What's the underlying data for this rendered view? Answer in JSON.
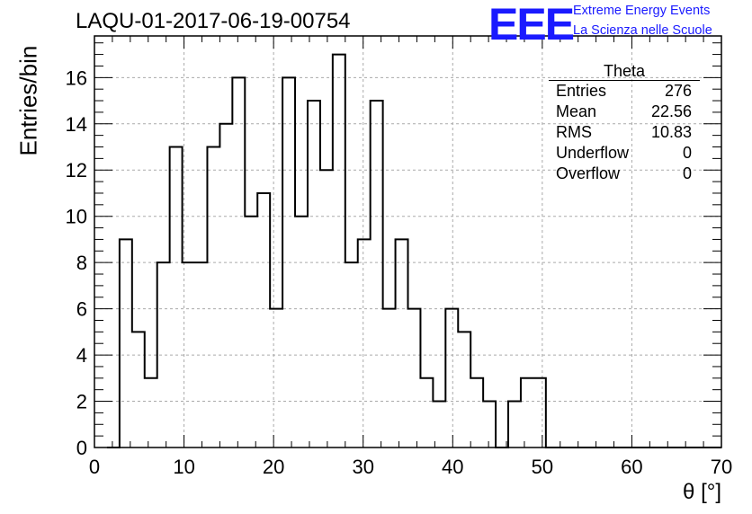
{
  "title": "LAQU-01-2017-06-19-00754",
  "logo": {
    "mark": "EEE",
    "line1": "Extreme Energy Events",
    "line2": "La Scienza nelle Scuole"
  },
  "stats": {
    "name": "Theta",
    "rows": [
      {
        "label": "Entries",
        "value": "276"
      },
      {
        "label": "Mean",
        "value": "22.56"
      },
      {
        "label": "RMS",
        "value": "10.83"
      },
      {
        "label": "Underflow",
        "value": "0"
      },
      {
        "label": "Overflow",
        "value": "0"
      }
    ]
  },
  "chart_data": {
    "type": "bar",
    "title": "LAQU-01-2017-06-19-00754",
    "xlabel": "θ [°]",
    "ylabel": "Entries/bin",
    "xlim": [
      0,
      70
    ],
    "ylim": [
      0,
      17.8
    ],
    "xticks": [
      0,
      10,
      20,
      30,
      40,
      50,
      60,
      70
    ],
    "yticks": [
      0,
      2,
      4,
      6,
      8,
      10,
      12,
      14,
      16
    ],
    "grid": true,
    "bin_width": 1.4,
    "bin_start": 1.4,
    "values": [
      0,
      9,
      5,
      3,
      8,
      13,
      8,
      8,
      13,
      14,
      16,
      10,
      11,
      6,
      16,
      10,
      15,
      12,
      17,
      8,
      9,
      15,
      6,
      9,
      6,
      3,
      2,
      6,
      5,
      3,
      2,
      0,
      2,
      3,
      3,
      0,
      0,
      0,
      0,
      0,
      0,
      0,
      0,
      0,
      0,
      0,
      0,
      0,
      0
    ]
  }
}
